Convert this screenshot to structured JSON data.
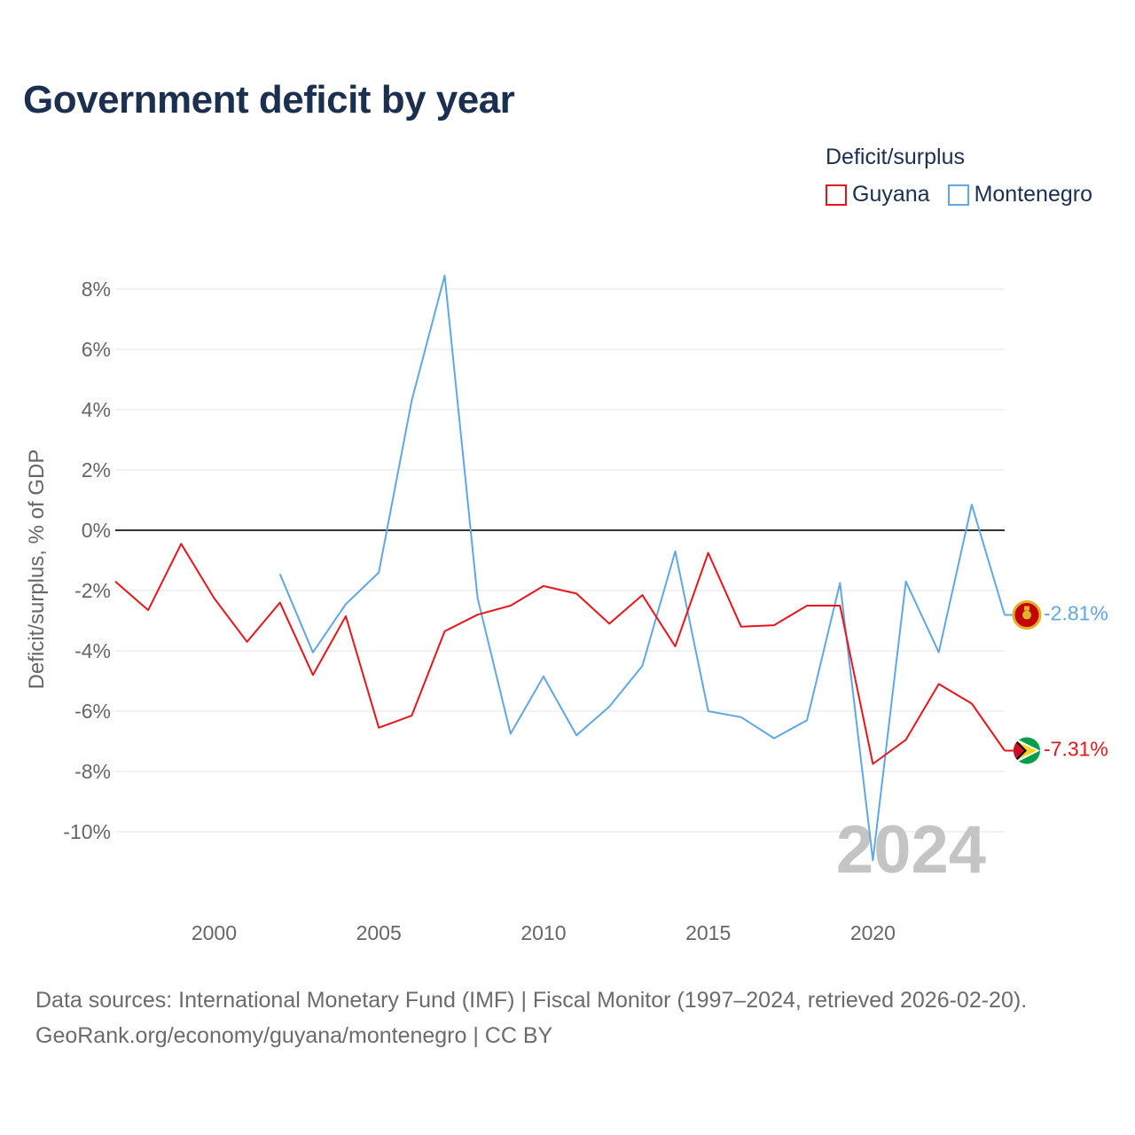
{
  "title": "Government deficit by year",
  "legend": {
    "title": "Deficit/surplus",
    "items": [
      {
        "name": "Guyana",
        "color": "#e8161b"
      },
      {
        "name": "Montenegro",
        "color": "#5fa7e6"
      }
    ]
  },
  "ylabel": "Deficit/surplus, % of GDP",
  "year_watermark": "2024",
  "source": {
    "line1": "Data sources: International Monetary Fund (IMF) | Fiscal Monitor (1997–2024, retrieved 2026-02-20).",
    "line2": "GeoRank.org/economy/guyana/montenegro | CC BY"
  },
  "chart_data": {
    "type": "line",
    "title": "Government deficit by year",
    "xlabel": "",
    "ylabel": "Deficit/surplus, % of GDP",
    "xlim": [
      1997,
      2024
    ],
    "ylim": [
      -12,
      9
    ],
    "x_ticks": [
      2000,
      2005,
      2010,
      2015,
      2020
    ],
    "x_tick_labels": [
      "2000",
      "2005",
      "2010",
      "2015",
      "2020"
    ],
    "y_ticks": [
      8,
      6,
      4,
      2,
      0,
      -2,
      -4,
      -6,
      -8,
      -10
    ],
    "y_tick_labels": [
      "8%",
      "6%",
      "4%",
      "2%",
      "0%",
      "-2%",
      "-4%",
      "-6%",
      "-8%",
      "-10%"
    ],
    "series": [
      {
        "name": "Guyana",
        "color": "#e8161b",
        "x": [
          1997,
          1998,
          1999,
          2000,
          2001,
          2002,
          2003,
          2004,
          2005,
          2006,
          2007,
          2008,
          2009,
          2010,
          2011,
          2012,
          2013,
          2014,
          2015,
          2016,
          2017,
          2018,
          2019,
          2020,
          2021,
          2022,
          2023,
          2024
        ],
        "values": [
          -1.7,
          -2.65,
          -0.45,
          -2.25,
          -3.7,
          -2.4,
          -4.8,
          -2.85,
          -6.55,
          -6.15,
          -3.35,
          -2.8,
          -2.5,
          -1.85,
          -2.1,
          -3.1,
          -2.15,
          -3.85,
          -0.75,
          -3.2,
          -3.15,
          -2.5,
          -2.5,
          -7.75,
          -6.95,
          -5.1,
          -5.75,
          -7.31
        ],
        "end_label": "-7.31%"
      },
      {
        "name": "Montenegro",
        "color": "#5fa7e6",
        "x": [
          2002,
          2003,
          2004,
          2005,
          2006,
          2007,
          2008,
          2009,
          2010,
          2011,
          2012,
          2013,
          2014,
          2015,
          2016,
          2017,
          2018,
          2019,
          2020,
          2021,
          2022,
          2023,
          2024
        ],
        "values": [
          -1.45,
          -4.05,
          -2.45,
          -1.4,
          4.3,
          8.45,
          -2.25,
          -6.75,
          -4.85,
          -6.8,
          -5.85,
          -4.5,
          -0.7,
          -6.0,
          -6.2,
          -6.9,
          -6.3,
          -1.75,
          -10.95,
          -1.7,
          -4.05,
          0.85,
          -2.81
        ],
        "end_label": "-2.81%"
      }
    ]
  }
}
